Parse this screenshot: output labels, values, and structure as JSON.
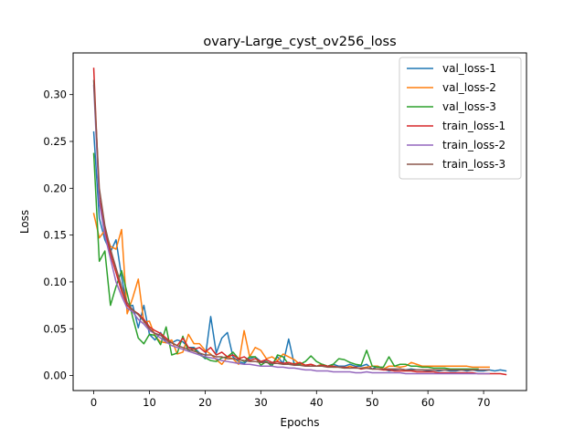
{
  "chart_data": {
    "type": "line",
    "title": "ovary-Large_cyst_ov256_loss",
    "xlabel": "Epochs",
    "ylabel": "Loss",
    "xlim": [
      -3.7,
      77.7
    ],
    "ylim": [
      -0.016,
      0.3445
    ],
    "xticks": [
      0,
      10,
      20,
      30,
      40,
      50,
      60,
      70
    ],
    "yticks": [
      0.0,
      0.05,
      0.1,
      0.15,
      0.2,
      0.25,
      0.3
    ],
    "ytick_labels": [
      "0.00",
      "0.05",
      "0.10",
      "0.15",
      "0.20",
      "0.25",
      "0.30"
    ],
    "grid": false,
    "legend_position": "top-right",
    "series": [
      {
        "name": "val_loss-1",
        "color": "#1f77b4",
        "values": [
          0.26,
          0.168,
          0.145,
          0.132,
          0.145,
          0.105,
          0.074,
          0.075,
          0.051,
          0.075,
          0.044,
          0.038,
          0.046,
          0.035,
          0.035,
          0.038,
          0.036,
          0.03,
          0.03,
          0.024,
          0.018,
          0.063,
          0.024,
          0.04,
          0.046,
          0.02,
          0.015,
          0.013,
          0.018,
          0.02,
          0.015,
          0.015,
          0.012,
          0.02,
          0.013,
          0.039,
          0.012,
          0.013,
          0.011,
          0.01,
          0.01,
          0.012,
          0.01,
          0.012,
          0.01,
          0.01,
          0.012,
          0.01,
          0.01,
          0.012,
          0.007,
          0.01,
          0.007,
          0.005,
          0.006,
          0.007,
          0.006,
          0.007,
          0.006,
          0.006,
          0.005,
          0.006,
          0.005,
          0.006,
          0.005,
          0.005,
          0.006,
          0.005,
          0.006,
          0.005,
          0.005,
          0.006,
          0.005,
          0.006,
          0.005
        ]
      },
      {
        "name": "val_loss-2",
        "color": "#ff7f0e",
        "values": [
          0.173,
          0.147,
          0.155,
          0.138,
          0.135,
          0.156,
          0.066,
          0.083,
          0.103,
          0.057,
          0.058,
          0.042,
          0.036,
          0.035,
          0.038,
          0.023,
          0.025,
          0.044,
          0.034,
          0.034,
          0.027,
          0.023,
          0.017,
          0.012,
          0.02,
          0.018,
          0.012,
          0.048,
          0.02,
          0.03,
          0.027,
          0.018,
          0.02,
          0.016,
          0.023,
          0.02,
          0.017,
          0.012,
          0.011,
          0.012,
          0.01,
          0.012,
          0.01,
          0.009,
          0.009,
          0.008,
          0.01,
          0.008,
          0.008,
          0.009,
          0.01,
          0.01,
          0.007,
          0.01,
          0.01,
          0.009,
          0.01,
          0.014,
          0.012,
          0.01,
          0.01,
          0.01,
          0.01,
          0.01,
          0.01,
          0.01,
          0.01,
          0.01,
          0.009,
          0.009,
          0.009,
          0.009
        ]
      },
      {
        "name": "val_loss-3",
        "color": "#2ca02c",
        "values": [
          0.237,
          0.122,
          0.133,
          0.075,
          0.095,
          0.112,
          0.088,
          0.062,
          0.04,
          0.034,
          0.044,
          0.043,
          0.033,
          0.052,
          0.022,
          0.024,
          0.042,
          0.026,
          0.029,
          0.022,
          0.019,
          0.016,
          0.015,
          0.019,
          0.02,
          0.025,
          0.018,
          0.015,
          0.02,
          0.02,
          0.011,
          0.015,
          0.01,
          0.022,
          0.02,
          0.012,
          0.013,
          0.012,
          0.015,
          0.021,
          0.015,
          0.012,
          0.01,
          0.012,
          0.018,
          0.017,
          0.014,
          0.012,
          0.011,
          0.027,
          0.01,
          0.009,
          0.009,
          0.02,
          0.01,
          0.012,
          0.012,
          0.01,
          0.01,
          0.009,
          0.009,
          0.008,
          0.008,
          0.008,
          0.007,
          0.007,
          0.007,
          0.007,
          0.007,
          0.007
        ]
      },
      {
        "name": "train_loss-1",
        "color": "#d62728",
        "values": [
          0.328,
          0.19,
          0.155,
          0.13,
          0.11,
          0.09,
          0.075,
          0.07,
          0.066,
          0.06,
          0.052,
          0.048,
          0.045,
          0.04,
          0.035,
          0.032,
          0.04,
          0.03,
          0.028,
          0.03,
          0.025,
          0.03,
          0.022,
          0.025,
          0.02,
          0.022,
          0.018,
          0.02,
          0.016,
          0.018,
          0.015,
          0.017,
          0.014,
          0.015,
          0.013,
          0.014,
          0.012,
          0.014,
          0.011,
          0.012,
          0.01,
          0.011,
          0.01,
          0.01,
          0.009,
          0.009,
          0.008,
          0.009,
          0.007,
          0.008,
          0.007,
          0.007,
          0.006,
          0.006,
          0.005,
          0.005,
          0.005,
          0.005,
          0.004,
          0.004,
          0.004,
          0.004,
          0.003,
          0.003,
          0.003,
          0.003,
          0.003,
          0.003,
          0.003,
          0.002,
          0.002,
          0.002,
          0.002,
          0.002,
          0.001
        ]
      },
      {
        "name": "train_loss-2",
        "color": "#9467bd",
        "values": [
          0.31,
          0.185,
          0.15,
          0.125,
          0.1,
          0.085,
          0.072,
          0.068,
          0.06,
          0.055,
          0.048,
          0.045,
          0.04,
          0.036,
          0.032,
          0.03,
          0.028,
          0.026,
          0.024,
          0.022,
          0.02,
          0.019,
          0.018,
          0.016,
          0.015,
          0.014,
          0.013,
          0.012,
          0.012,
          0.011,
          0.01,
          0.01,
          0.01,
          0.009,
          0.009,
          0.008,
          0.008,
          0.007,
          0.006,
          0.006,
          0.005,
          0.005,
          0.005,
          0.004,
          0.004,
          0.004,
          0.004,
          0.003,
          0.003,
          0.004,
          0.003,
          0.003,
          0.003,
          0.003,
          0.003,
          0.003,
          0.002,
          0.002,
          0.002,
          0.002,
          0.002,
          0.002,
          0.002,
          0.002,
          0.002,
          0.002,
          0.002,
          0.002,
          0.002,
          0.002,
          0.002,
          0.002
        ]
      },
      {
        "name": "train_loss-3",
        "color": "#8c564b",
        "values": [
          0.315,
          0.2,
          0.16,
          0.135,
          0.115,
          0.095,
          0.078,
          0.07,
          0.065,
          0.058,
          0.05,
          0.045,
          0.043,
          0.038,
          0.035,
          0.032,
          0.03,
          0.028,
          0.026,
          0.024,
          0.022,
          0.022,
          0.02,
          0.02,
          0.018,
          0.018,
          0.017,
          0.016,
          0.015,
          0.015,
          0.014,
          0.014,
          0.013,
          0.013,
          0.012,
          0.012,
          0.011,
          0.011,
          0.01,
          0.01,
          0.01,
          0.01,
          0.009,
          0.009,
          0.009,
          0.008,
          0.008,
          0.008,
          0.008,
          0.008,
          0.007,
          0.007,
          0.007,
          0.007,
          0.007,
          0.007,
          0.006,
          0.006,
          0.006,
          0.006,
          0.006,
          0.006,
          0.006,
          0.006,
          0.006,
          0.006,
          0.006,
          0.006,
          0.006,
          0.006,
          0.006,
          0.006
        ]
      }
    ]
  }
}
